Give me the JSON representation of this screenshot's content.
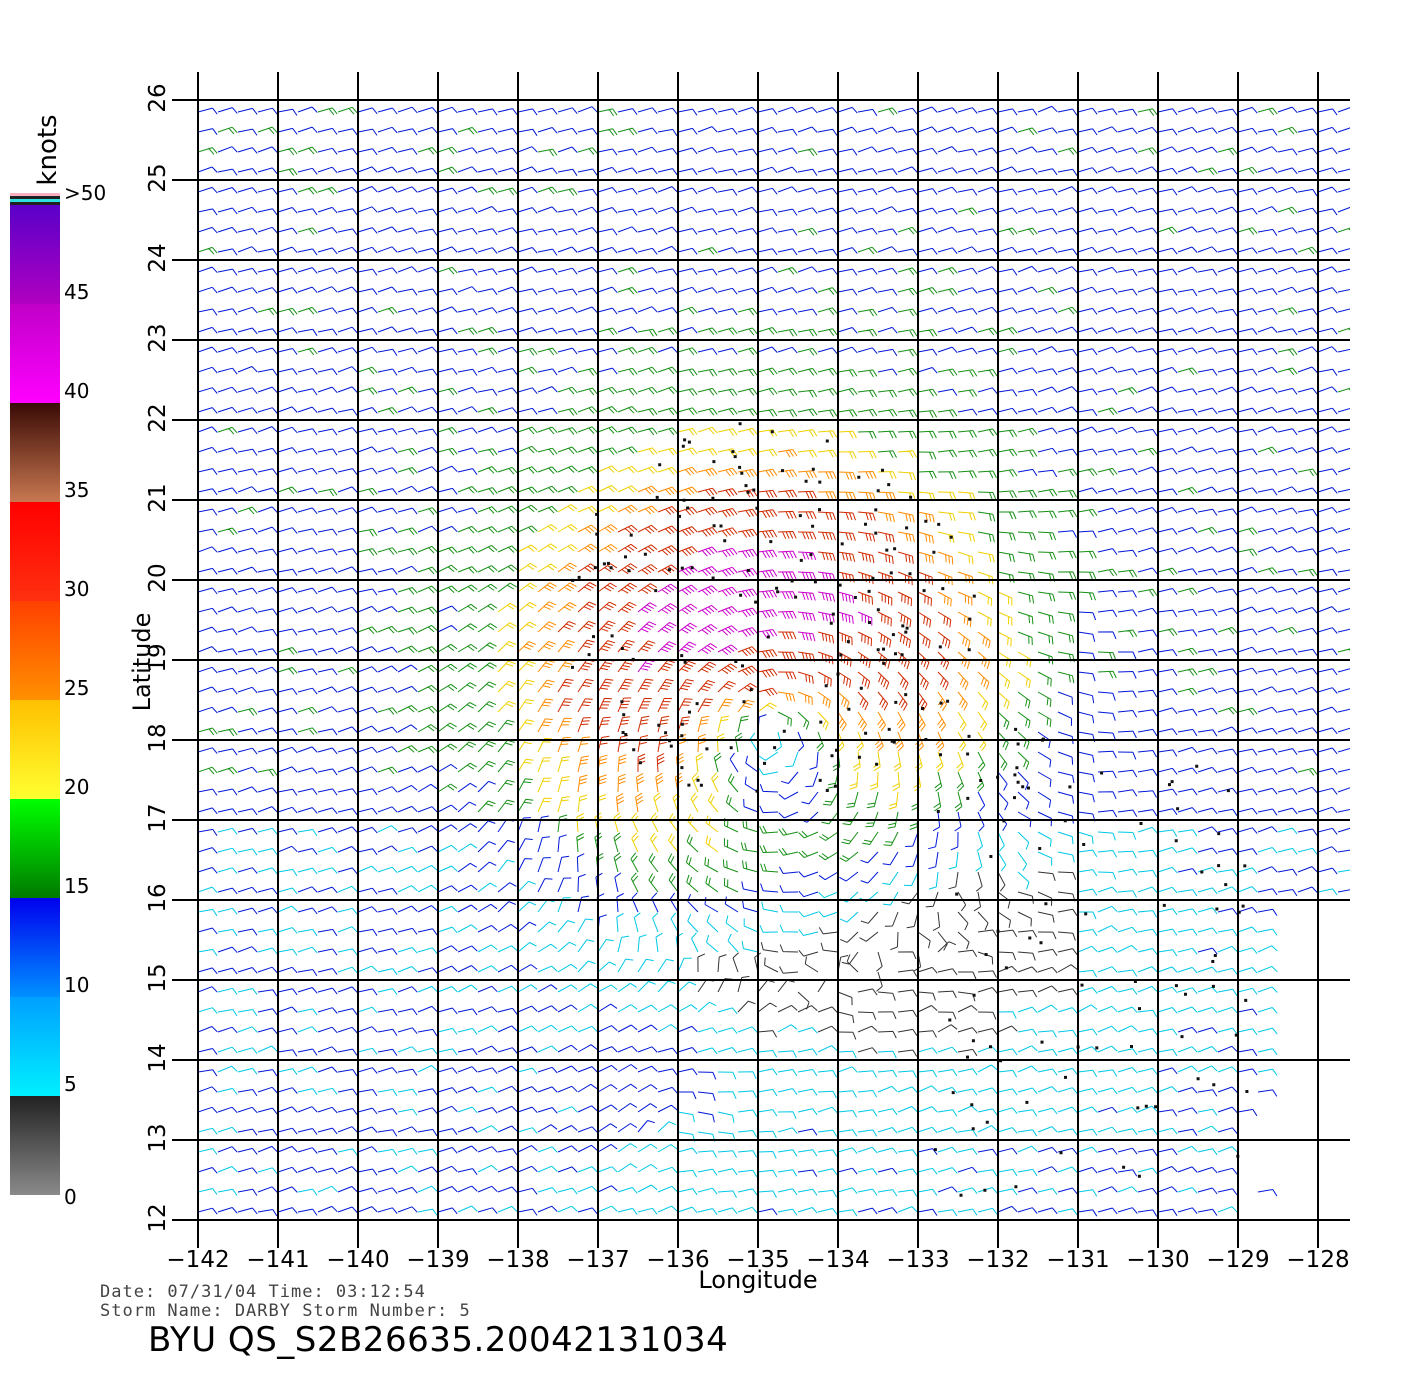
{
  "chart_data": {
    "type": "wind-barb-map",
    "x_axis": {
      "label": "Longitude",
      "range": [
        -142,
        -128
      ],
      "ticks": [
        -142,
        -141,
        -140,
        -139,
        -138,
        -137,
        -136,
        -135,
        -134,
        -133,
        -132,
        -131,
        -130,
        -129,
        -128
      ]
    },
    "y_axis": {
      "label": "Latitude",
      "range": [
        12,
        26
      ],
      "ticks": [
        12,
        13,
        14,
        15,
        16,
        17,
        18,
        19,
        20,
        21,
        22,
        23,
        24,
        25,
        26
      ]
    },
    "grid": true,
    "colorbar": {
      "unit": "knots",
      "ticks": [
        {
          "value": 0,
          "label": "0"
        },
        {
          "value": 5,
          "label": "5"
        },
        {
          "value": 10,
          "label": "10"
        },
        {
          "value": 15,
          "label": "15"
        },
        {
          "value": 20,
          "label": "20"
        },
        {
          "value": 25,
          "label": "25"
        },
        {
          "value": 30,
          "label": "30"
        },
        {
          "value": 35,
          "label": "35"
        },
        {
          "value": 40,
          "label": "40"
        },
        {
          "value": 45,
          "label": "45"
        },
        {
          "value": 50,
          "label": ">50"
        }
      ],
      "stops": [
        {
          "from": 0,
          "to": 5,
          "colors": [
            "#8a8a8a",
            "#222222"
          ]
        },
        {
          "from": 5,
          "to": 10,
          "colors": [
            "#00f0ff",
            "#00a0ff"
          ]
        },
        {
          "from": 10,
          "to": 15,
          "colors": [
            "#0090ff",
            "#0000ee"
          ]
        },
        {
          "from": 15,
          "to": 20,
          "colors": [
            "#007a00",
            "#00ff00"
          ]
        },
        {
          "from": 20,
          "to": 25,
          "colors": [
            "#ffff30",
            "#ffc000"
          ]
        },
        {
          "from": 25,
          "to": 30,
          "colors": [
            "#ff9000",
            "#ff4000"
          ]
        },
        {
          "from": 30,
          "to": 35,
          "colors": [
            "#ff3010",
            "#ff0000"
          ]
        },
        {
          "from": 35,
          "to": 40,
          "colors": [
            "#c87850",
            "#3a0a05"
          ]
        },
        {
          "from": 40,
          "to": 45,
          "colors": [
            "#ff00ff",
            "#c000c8"
          ]
        },
        {
          "from": 45,
          "to": 50,
          "colors": [
            "#b000c0",
            "#5a00c8"
          ]
        }
      ]
    },
    "storm_center": {
      "lon": -134.9,
      "lat": 18.3
    },
    "colors": {
      "0-5": "#333333",
      "5-10": "#00c8e6",
      "10-15": "#0018d8",
      "15-20": "#169016",
      "20-25": "#f0d000",
      "25-30": "#ff8c00",
      "30-35": "#d02a00",
      ">40": "#cc00cc"
    }
  },
  "footer": {
    "date_line": "Date: 07/31/04   Time: 03:12:54",
    "storm_line": "Storm Name: DARBY   Storm Number: 5",
    "title": "BYU QS_S2B26635.20042131034"
  }
}
